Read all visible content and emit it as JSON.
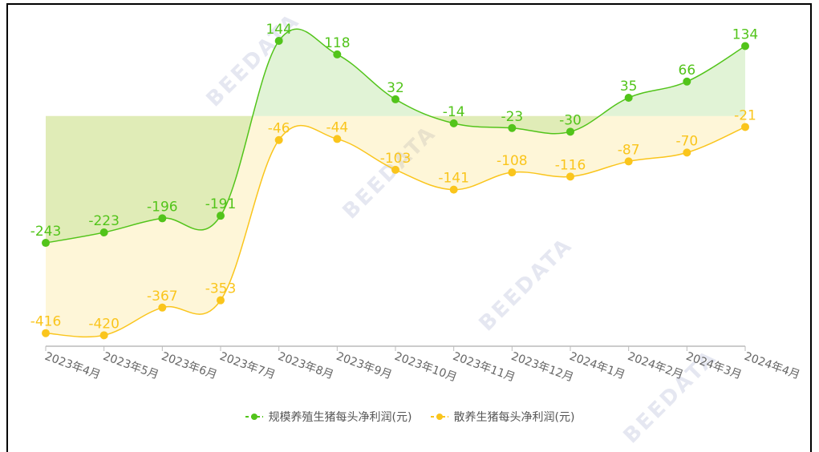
{
  "chart_data": {
    "type": "line",
    "title": "",
    "xlabel": "",
    "ylabel": "",
    "ylim": [
      -441,
      190
    ],
    "categories": [
      "2023年4月",
      "2023年5月",
      "2023年6月",
      "2023年7月",
      "2023年8月",
      "2023年9月",
      "2023年10月",
      "2023年11月",
      "2023年12月",
      "2024年1月",
      "2024年2月",
      "2024年3月",
      "2024年4月"
    ],
    "series": [
      {
        "name": "规模养殖生猪每头净利润(元)",
        "color": "#52c41a",
        "values": [
          -243,
          -223,
          -196,
          -191,
          144,
          118,
          32,
          -14,
          -23,
          -30,
          35,
          66,
          134
        ]
      },
      {
        "name": "散养生猪每头净利润(元)",
        "color": "#fac51c",
        "values": [
          -416,
          -420,
          -367,
          -353,
          -46,
          -44,
          -103,
          -141,
          -108,
          -116,
          -87,
          -70,
          -21
        ]
      }
    ],
    "legend_position": "bottom",
    "grid": false,
    "area_fill": true,
    "smooth": true
  },
  "watermark": "BEEDATA"
}
